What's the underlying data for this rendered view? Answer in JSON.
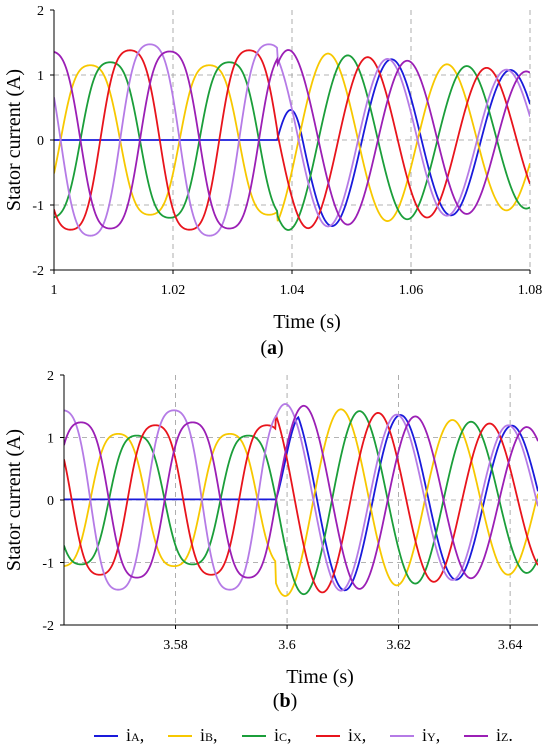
{
  "chart_data": [
    {
      "type": "line",
      "panel_label": "a",
      "xlabel": "Time (s)",
      "ylabel": "Stator current (A)",
      "xlim": [
        1.0,
        1.08
      ],
      "ylim": [
        -2,
        2
      ],
      "xticks": [
        "1",
        "1.02",
        "1.04",
        "1.06",
        "1.08"
      ],
      "yticks": [
        "-2",
        "-1",
        "0",
        "1",
        "2"
      ],
      "grid": true,
      "fault_time": 1.0375,
      "pre_fault": {
        "iA_amplitude": 0.0,
        "iA_value": 0.0,
        "iB_amplitude": 1.25,
        "iC_amplitude": 1.3,
        "iX_amplitude": 1.5,
        "iY_amplitude": 1.6,
        "iZ_amplitude": 1.48
      },
      "post_fault": {
        "amplitude_start": 1.4,
        "amplitude_end": 1.05
      },
      "series": [
        {
          "name": "iA",
          "color": "#1a1adb",
          "peaks": [
            [
              1.04,
              -0.8
            ],
            [
              1.05,
              1.3
            ],
            [
              1.07,
              1.05
            ]
          ]
        },
        {
          "name": "iB",
          "color": "#f7c800",
          "peaks": [
            [
              1.008,
              1.25
            ],
            [
              1.028,
              1.25
            ],
            [
              1.044,
              -1.4
            ]
          ]
        },
        {
          "name": "iC",
          "color": "#1b9e3a",
          "peaks": [
            [
              1.004,
              1.27
            ],
            [
              1.024,
              1.28
            ],
            [
              1.034,
              -1.3
            ]
          ]
        },
        {
          "name": "iX",
          "color": "#e8141c",
          "peaks": [
            [
              1.002,
              -1.5
            ],
            [
              1.012,
              1.56
            ],
            [
              1.032,
              1.57
            ]
          ]
        },
        {
          "name": "iY",
          "color": "#b57be6",
          "peaks": [
            [
              1.0,
              1.6
            ],
            [
              1.014,
              1.62
            ],
            [
              1.034,
              1.62
            ]
          ]
        },
        {
          "name": "iZ",
          "color": "#9b1fb5",
          "peaks": [
            [
              1.006,
              1.48
            ],
            [
              1.016,
              -1.45
            ],
            [
              1.026,
              1.48
            ]
          ]
        }
      ]
    },
    {
      "type": "line",
      "panel_label": "b",
      "xlabel": "Time (s)",
      "ylabel": "Stator current (A)",
      "xlim": [
        3.56,
        3.645
      ],
      "ylim": [
        -2,
        2
      ],
      "xticks": [
        "3.58",
        "3.6",
        "3.62",
        "3.64"
      ],
      "yticks": [
        "-2",
        "-1",
        "0",
        "1",
        "2"
      ],
      "grid": true,
      "fault_time": 3.598,
      "pre_fault": {
        "iA_amplitude": 0.0,
        "iA_value": 0.01,
        "iB_amplitude": 1.15,
        "iC_amplitude": 1.12,
        "iX_amplitude": 1.3,
        "iY_amplitude": 1.56,
        "iZ_amplitude": 1.35
      },
      "post_fault": {
        "amplitude_start": 1.55,
        "amplitude_end": 1.15
      },
      "series": [
        {
          "name": "iA",
          "color": "#1a1adb",
          "peaks": [
            [
              3.612,
              1.55
            ],
            [
              3.622,
              -1.3
            ],
            [
              3.632,
              1.2
            ]
          ]
        },
        {
          "name": "iB",
          "color": "#f7c800",
          "peaks": [
            [
              3.566,
              -1.15
            ],
            [
              3.576,
              1.15
            ],
            [
              3.608,
              -1.6
            ]
          ]
        },
        {
          "name": "iC",
          "color": "#1b9e3a",
          "peaks": [
            [
              3.569,
              1.12
            ],
            [
              3.579,
              -1.12
            ],
            [
              3.608,
              1.48
            ]
          ]
        },
        {
          "name": "iX",
          "color": "#e8141c",
          "peaks": [
            [
              3.575,
              1.3
            ],
            [
              3.585,
              -1.3
            ],
            [
              3.594,
              1.3
            ]
          ]
        },
        {
          "name": "iY",
          "color": "#b57be6",
          "peaks": [
            [
              3.56,
              1.56
            ],
            [
              3.58,
              1.56
            ],
            [
              3.598,
              -1.5
            ]
          ]
        },
        {
          "name": "iZ",
          "color": "#9b1fb5",
          "peaks": [
            [
              3.565,
              1.35
            ],
            [
              3.584,
              1.35
            ],
            [
              3.61,
              1.6
            ]
          ]
        }
      ]
    }
  ],
  "legend": {
    "items": [
      {
        "main": "i",
        "sub": "A",
        "suffix": ",",
        "color": "#1a1adb"
      },
      {
        "main": "i",
        "sub": "B",
        "suffix": ",",
        "color": "#f7c800"
      },
      {
        "main": "i",
        "sub": "C",
        "suffix": ",",
        "color": "#1b9e3a"
      },
      {
        "main": "i",
        "sub": "X",
        "suffix": ",",
        "color": "#e8141c"
      },
      {
        "main": "i",
        "sub": "Y",
        "suffix": ",",
        "color": "#b57be6"
      },
      {
        "main": "i",
        "sub": "Z",
        "suffix": ".",
        "color": "#9b1fb5"
      }
    ]
  }
}
